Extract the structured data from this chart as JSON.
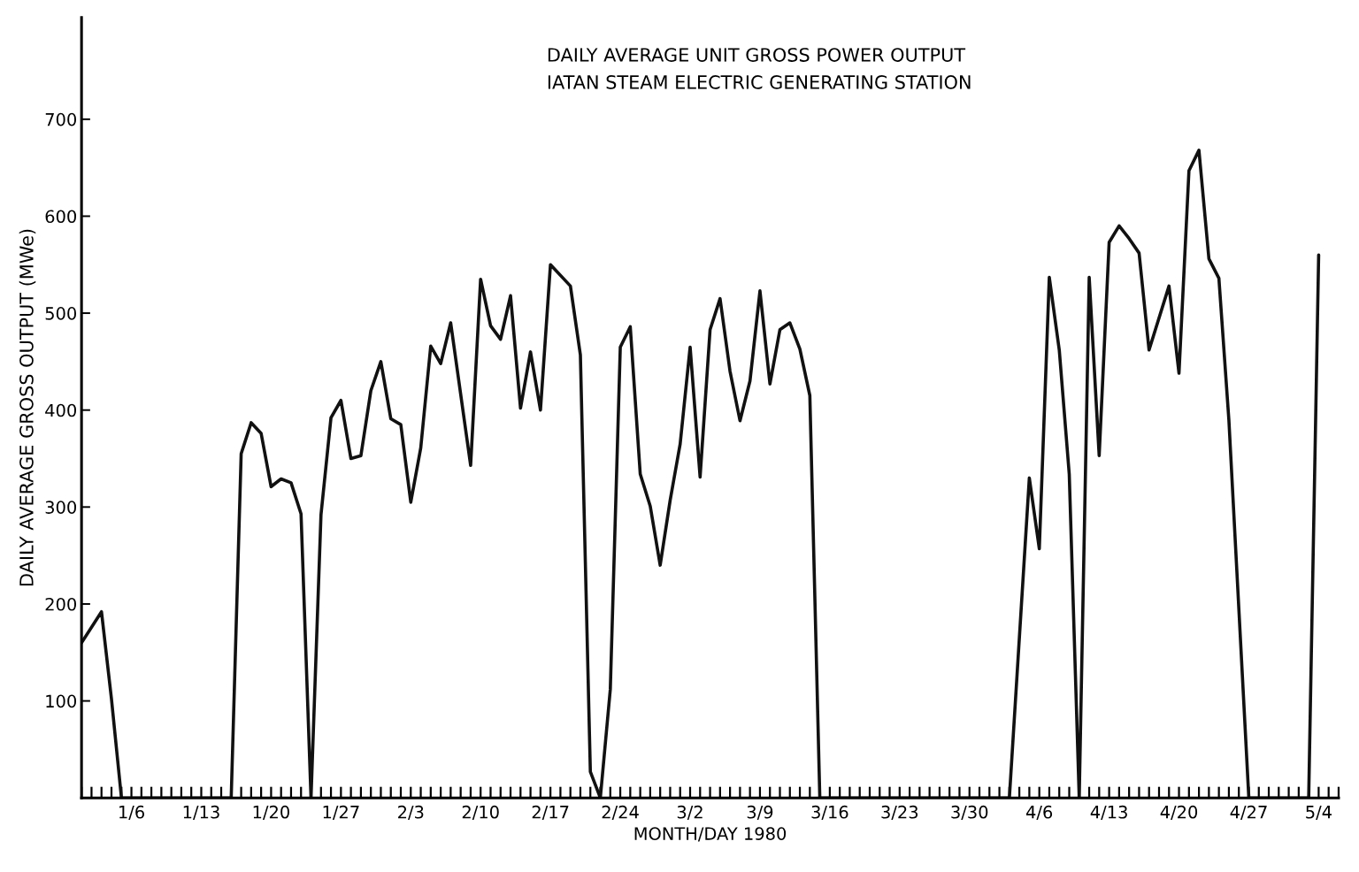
{
  "chart_data": {
    "type": "line",
    "title": "DAILY AVERAGE UNIT GROSS POWER OUTPUT",
    "subtitle": "IATAN STEAM ELECTRIC GENERATING STATION",
    "xlabel": "MONTH/DAY 1980",
    "ylabel": "DAILY AVERAGE GROSS OUTPUT (MWe)",
    "series": [
      {
        "color": "#111111",
        "x": [
          "1980-01-01",
          "1980-01-03",
          "1980-01-04",
          "1980-01-05",
          "1980-01-16",
          "1980-01-17",
          "1980-01-18",
          "1980-01-19",
          "1980-01-20",
          "1980-01-21",
          "1980-01-22",
          "1980-01-23",
          "1980-01-24",
          "1980-01-25",
          "1980-01-26",
          "1980-01-27",
          "1980-01-28",
          "1980-01-29",
          "1980-01-30",
          "1980-01-31",
          "1980-02-01",
          "1980-02-02",
          "1980-02-03",
          "1980-02-04",
          "1980-02-05",
          "1980-02-06",
          "1980-02-07",
          "1980-02-09",
          "1980-02-10",
          "1980-02-11",
          "1980-02-12",
          "1980-02-13",
          "1980-02-14",
          "1980-02-15",
          "1980-02-16",
          "1980-02-17",
          "1980-02-19",
          "1980-02-20",
          "1980-02-21",
          "1980-02-22",
          "1980-02-23",
          "1980-02-24",
          "1980-02-25",
          "1980-02-26",
          "1980-02-27",
          "1980-02-28",
          "1980-02-29",
          "1980-03-01",
          "1980-03-02",
          "1980-03-03",
          "1980-03-04",
          "1980-03-05",
          "1980-03-06",
          "1980-03-07",
          "1980-03-08",
          "1980-03-09",
          "1980-03-10",
          "1980-03-11",
          "1980-03-12",
          "1980-03-13",
          "1980-03-14",
          "1980-03-15",
          "1980-04-03",
          "1980-04-05",
          "1980-04-06",
          "1980-04-07",
          "1980-04-08",
          "1980-04-09",
          "1980-04-10",
          "1980-04-11",
          "1980-04-12",
          "1980-04-13",
          "1980-04-14",
          "1980-04-15",
          "1980-04-16",
          "1980-04-17",
          "1980-04-19",
          "1980-04-20",
          "1980-04-21",
          "1980-04-22",
          "1980-04-23",
          "1980-04-24",
          "1980-04-25",
          "1980-04-27",
          "1980-05-03",
          "1980-05-04"
        ],
        "values": [
          160,
          192,
          102,
          0,
          0,
          355,
          387,
          376,
          321,
          329,
          325,
          293,
          0,
          292,
          392,
          410,
          350,
          353,
          420,
          450,
          391,
          385,
          305,
          361,
          466,
          448,
          490,
          343,
          535,
          487,
          473,
          518,
          402,
          460,
          400,
          550,
          528,
          457,
          27,
          0,
          112,
          465,
          486,
          334,
          301,
          240,
          307,
          365,
          465,
          331,
          483,
          515,
          440,
          389,
          430,
          523,
          427,
          483,
          490,
          463,
          415,
          0,
          0,
          330,
          257,
          537,
          462,
          334,
          0,
          537,
          353,
          573,
          590,
          577,
          562,
          462,
          528,
          438,
          647,
          668,
          556,
          536,
          390,
          0,
          0,
          560
        ]
      }
    ],
    "xlim": [
      "1980-01-01",
      "1980-05-06"
    ],
    "xticks": [
      {
        "value": "1980-01-01",
        "label": null
      },
      {
        "value": "1980-01-02",
        "label": null
      },
      {
        "value": "1980-01-03",
        "label": null
      },
      {
        "value": "1980-01-04",
        "label": null
      },
      {
        "value": "1980-01-05",
        "label": null
      },
      {
        "value": "1980-01-06",
        "label": "1/6"
      },
      {
        "value": "1980-01-07",
        "label": null
      },
      {
        "value": "1980-01-08",
        "label": null
      },
      {
        "value": "1980-01-09",
        "label": null
      },
      {
        "value": "1980-01-10",
        "label": null
      },
      {
        "value": "1980-01-11",
        "label": null
      },
      {
        "value": "1980-01-12",
        "label": null
      },
      {
        "value": "1980-01-13",
        "label": "1/13"
      },
      {
        "value": "1980-01-14",
        "label": null
      },
      {
        "value": "1980-01-15",
        "label": null
      },
      {
        "value": "1980-01-16",
        "label": null
      },
      {
        "value": "1980-01-17",
        "label": null
      },
      {
        "value": "1980-01-18",
        "label": null
      },
      {
        "value": "1980-01-19",
        "label": null
      },
      {
        "value": "1980-01-20",
        "label": "1/20"
      },
      {
        "value": "1980-01-21",
        "label": null
      },
      {
        "value": "1980-01-22",
        "label": null
      },
      {
        "value": "1980-01-23",
        "label": null
      },
      {
        "value": "1980-01-24",
        "label": null
      },
      {
        "value": "1980-01-25",
        "label": null
      },
      {
        "value": "1980-01-26",
        "label": null
      },
      {
        "value": "1980-01-27",
        "label": "1/27"
      },
      {
        "value": "1980-01-28",
        "label": null
      },
      {
        "value": "1980-01-29",
        "label": null
      },
      {
        "value": "1980-01-30",
        "label": null
      },
      {
        "value": "1980-01-31",
        "label": null
      },
      {
        "value": "1980-02-01",
        "label": null
      },
      {
        "value": "1980-02-02",
        "label": null
      },
      {
        "value": "1980-02-03",
        "label": "2/3"
      },
      {
        "value": "1980-02-04",
        "label": null
      },
      {
        "value": "1980-02-05",
        "label": null
      },
      {
        "value": "1980-02-06",
        "label": null
      },
      {
        "value": "1980-02-07",
        "label": null
      },
      {
        "value": "1980-02-08",
        "label": null
      },
      {
        "value": "1980-02-09",
        "label": null
      },
      {
        "value": "1980-02-10",
        "label": "2/10"
      },
      {
        "value": "1980-02-11",
        "label": null
      },
      {
        "value": "1980-02-12",
        "label": null
      },
      {
        "value": "1980-02-13",
        "label": null
      },
      {
        "value": "1980-02-14",
        "label": null
      },
      {
        "value": "1980-02-15",
        "label": null
      },
      {
        "value": "1980-02-16",
        "label": null
      },
      {
        "value": "1980-02-17",
        "label": "2/17"
      },
      {
        "value": "1980-02-18",
        "label": null
      },
      {
        "value": "1980-02-19",
        "label": null
      },
      {
        "value": "1980-02-20",
        "label": null
      },
      {
        "value": "1980-02-21",
        "label": null
      },
      {
        "value": "1980-02-22",
        "label": null
      },
      {
        "value": "1980-02-23",
        "label": null
      },
      {
        "value": "1980-02-24",
        "label": "2/24"
      },
      {
        "value": "1980-02-25",
        "label": null
      },
      {
        "value": "1980-02-26",
        "label": null
      },
      {
        "value": "1980-02-27",
        "label": null
      },
      {
        "value": "1980-02-28",
        "label": null
      },
      {
        "value": "1980-02-29",
        "label": null
      },
      {
        "value": "1980-03-01",
        "label": null
      },
      {
        "value": "1980-03-02",
        "label": "3/2"
      },
      {
        "value": "1980-03-03",
        "label": null
      },
      {
        "value": "1980-03-04",
        "label": null
      },
      {
        "value": "1980-03-05",
        "label": null
      },
      {
        "value": "1980-03-06",
        "label": null
      },
      {
        "value": "1980-03-07",
        "label": null
      },
      {
        "value": "1980-03-08",
        "label": null
      },
      {
        "value": "1980-03-09",
        "label": "3/9"
      },
      {
        "value": "1980-03-10",
        "label": null
      },
      {
        "value": "1980-03-11",
        "label": null
      },
      {
        "value": "1980-03-12",
        "label": null
      },
      {
        "value": "1980-03-13",
        "label": null
      },
      {
        "value": "1980-03-14",
        "label": null
      },
      {
        "value": "1980-03-15",
        "label": null
      },
      {
        "value": "1980-03-16",
        "label": "3/16"
      },
      {
        "value": "1980-03-17",
        "label": null
      },
      {
        "value": "1980-03-18",
        "label": null
      },
      {
        "value": "1980-03-19",
        "label": null
      },
      {
        "value": "1980-03-20",
        "label": null
      },
      {
        "value": "1980-03-21",
        "label": null
      },
      {
        "value": "1980-03-22",
        "label": null
      },
      {
        "value": "1980-03-23",
        "label": "3/23"
      },
      {
        "value": "1980-03-24",
        "label": null
      },
      {
        "value": "1980-03-25",
        "label": null
      },
      {
        "value": "1980-03-26",
        "label": null
      },
      {
        "value": "1980-03-27",
        "label": null
      },
      {
        "value": "1980-03-28",
        "label": null
      },
      {
        "value": "1980-03-29",
        "label": null
      },
      {
        "value": "1980-03-30",
        "label": "3/30"
      },
      {
        "value": "1980-03-31",
        "label": null
      },
      {
        "value": "1980-04-01",
        "label": null
      },
      {
        "value": "1980-04-02",
        "label": null
      },
      {
        "value": "1980-04-03",
        "label": null
      },
      {
        "value": "1980-04-04",
        "label": null
      },
      {
        "value": "1980-04-05",
        "label": null
      },
      {
        "value": "1980-04-06",
        "label": "4/6"
      },
      {
        "value": "1980-04-07",
        "label": null
      },
      {
        "value": "1980-04-08",
        "label": null
      },
      {
        "value": "1980-04-09",
        "label": null
      },
      {
        "value": "1980-04-10",
        "label": null
      },
      {
        "value": "1980-04-11",
        "label": null
      },
      {
        "value": "1980-04-12",
        "label": null
      },
      {
        "value": "1980-04-13",
        "label": "4/13"
      },
      {
        "value": "1980-04-14",
        "label": null
      },
      {
        "value": "1980-04-15",
        "label": null
      },
      {
        "value": "1980-04-16",
        "label": null
      },
      {
        "value": "1980-04-17",
        "label": null
      },
      {
        "value": "1980-04-18",
        "label": null
      },
      {
        "value": "1980-04-19",
        "label": null
      },
      {
        "value": "1980-04-20",
        "label": "4/20"
      },
      {
        "value": "1980-04-21",
        "label": null
      },
      {
        "value": "1980-04-22",
        "label": null
      },
      {
        "value": "1980-04-23",
        "label": null
      },
      {
        "value": "1980-04-24",
        "label": null
      },
      {
        "value": "1980-04-25",
        "label": null
      },
      {
        "value": "1980-04-26",
        "label": null
      },
      {
        "value": "1980-04-27",
        "label": "4/27"
      },
      {
        "value": "1980-04-28",
        "label": null
      },
      {
        "value": "1980-04-29",
        "label": null
      },
      {
        "value": "1980-04-30",
        "label": null
      },
      {
        "value": "1980-05-01",
        "label": null
      },
      {
        "value": "1980-05-02",
        "label": null
      },
      {
        "value": "1980-05-03",
        "label": null
      },
      {
        "value": "1980-05-04",
        "label": "5/4"
      },
      {
        "value": "1980-05-05",
        "label": null
      },
      {
        "value": "1980-05-06",
        "label": null
      }
    ],
    "ylim": [
      0,
      805
    ],
    "yticks": [
      100,
      200,
      300,
      400,
      500,
      600,
      700
    ],
    "grid": false,
    "marker": "none",
    "line_style": "solid"
  }
}
